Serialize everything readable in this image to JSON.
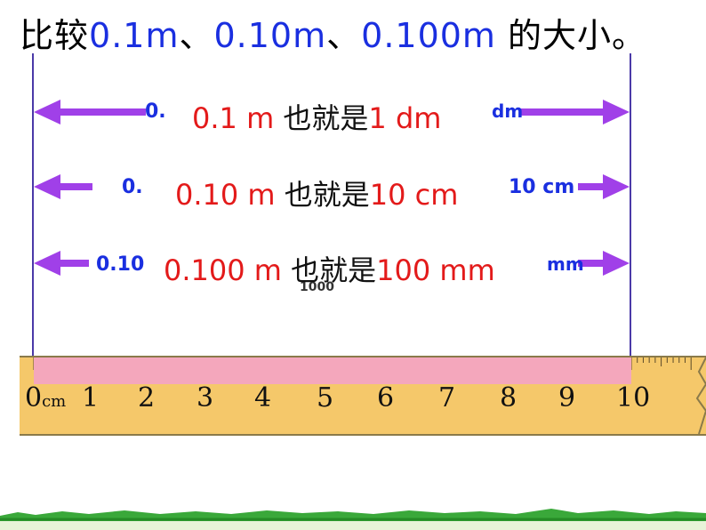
{
  "title": {
    "prefix": "比较",
    "v1": "0.1m",
    "sep1": "、",
    "v2": "0.10m",
    "sep2": "、",
    "v3": "0.100m",
    "suffix": " 的大小。"
  },
  "rows": [
    {
      "under_left": "0.",
      "under_right": "dm",
      "value": "0.1 m ",
      "connector": "也就是",
      "equiv": "1 dm"
    },
    {
      "under_left": "0.",
      "under_right": "10 cm",
      "value": "0.10 m ",
      "connector": "也就是",
      "equiv": "10 cm"
    },
    {
      "under_left": "0.10",
      "under_right": "mm",
      "value": "0.100 m ",
      "connector": "也就是",
      "equiv": "100 mm"
    }
  ],
  "fragment": "1000",
  "ruler": {
    "unit": "cm",
    "labels": [
      "0",
      "1",
      "2",
      "3",
      "4",
      "5",
      "6",
      "7",
      "8",
      "9",
      "10"
    ]
  },
  "colors": {
    "arrow": "#a040e8",
    "title_blue": "#1a2fe0",
    "red": "#e31a1a",
    "ruler": "#f5c86a",
    "highlight": "#f4a7bc",
    "grass": "#2e9a2e"
  }
}
